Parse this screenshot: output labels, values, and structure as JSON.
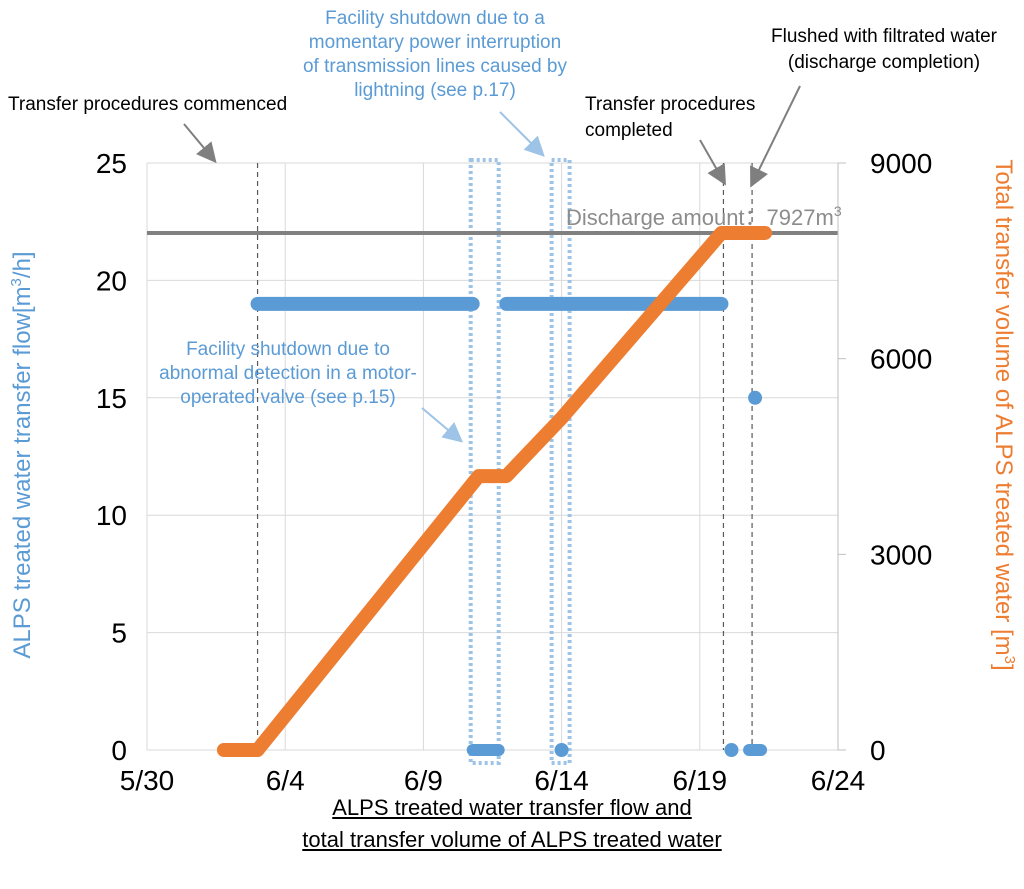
{
  "chart_data": {
    "type": "line",
    "title": "",
    "x_axis": {
      "type": "date",
      "ticks": [
        "5/30",
        "6/4",
        "6/9",
        "6/14",
        "6/19",
        "6/24"
      ],
      "range": [
        "5/30",
        "6/24"
      ]
    },
    "y_left": {
      "label": "ALPS treated water transfer flow[m³/h]",
      "ticks": [
        0,
        5,
        10,
        15,
        20,
        25
      ],
      "range": [
        0,
        25
      ],
      "color": "#5B9BD5"
    },
    "y_right": {
      "label": "Total transfer volume of ALPS treated water [m³]",
      "ticks": [
        0,
        3000,
        6000,
        9000
      ],
      "range": [
        0,
        9000
      ],
      "color": "#ED7D31"
    },
    "grid": "vertical and horizontal",
    "series": [
      {
        "name": "ALPS treated water transfer flow",
        "axis": "left",
        "style": "markers",
        "color": "#5B9BD5",
        "segments": [
          {
            "x_start": "6/3",
            "x_end": "6/11",
            "y": 19
          },
          {
            "x_start": "6/12",
            "x_end": "6/20",
            "y": 19
          }
        ],
        "points": [
          {
            "x": "6/11",
            "y": 0
          },
          {
            "x": "6/14",
            "y": 0
          },
          {
            "x": "6/20",
            "y": 0
          },
          {
            "x": "6/21",
            "y": 15
          },
          {
            "x": "6/21",
            "y": 0
          }
        ]
      },
      {
        "name": "Total transfer volume of ALPS treated water",
        "axis": "right",
        "style": "line",
        "color": "#ED7D31",
        "points": [
          {
            "x": "6/2",
            "y": 0
          },
          {
            "x": "6/3",
            "y": 0
          },
          {
            "x": "6/11",
            "y": 4200
          },
          {
            "x": "6/12",
            "y": 4200
          },
          {
            "x": "6/14",
            "y": 5090
          },
          {
            "x": "6/20",
            "y": 7927
          },
          {
            "x": "6/21",
            "y": 7927
          }
        ]
      }
    ],
    "reference_line": {
      "axis": "right",
      "value": 7927,
      "color": "#808080",
      "label": "Discharge amount：7927m³"
    },
    "annotations": [
      {
        "text": "Transfer procedures commenced",
        "color": "#000000",
        "at": "6/3"
      },
      {
        "text": "Facility shutdown due to a momentary power interruption of transmission lines caused by lightning (see p.17)",
        "color": "#5B9BD5",
        "at": "6/14"
      },
      {
        "text": "Transfer procedures completed",
        "color": "#000000",
        "at": "6/20"
      },
      {
        "text": "Flushed with filtrated water (discharge completion)",
        "color": "#000000",
        "at": "6/21"
      },
      {
        "text": "Facility shutdown due to abnormal detection in a motor-operated valve (see p.15)",
        "color": "#5B9BD5",
        "at": "6/11"
      }
    ],
    "caption": "ALPS treated water transfer flow and total transfer volume of ALPS treated water"
  },
  "text": {
    "y_left_label": "ALPS treated water transfer flow[m",
    "y_left_unit_sup": "3",
    "y_left_unit_end": "/h]",
    "y_right_label": "Total transfer volume of ALPS treated water [m",
    "y_right_unit_sup": "3",
    "y_right_unit_end": "]",
    "discharge_label": "Discharge amount：7927m",
    "discharge_sup": "3",
    "ann_commenced": "Transfer procedures commenced",
    "ann_lightning_1": "Facility shutdown due to a",
    "ann_lightning_2": "momentary power interruption",
    "ann_lightning_3": "of transmission lines caused by",
    "ann_lightning_4": "lightning (see p.17)",
    "ann_completed_1": "Transfer procedures",
    "ann_completed_2": "completed",
    "ann_flushed_1": "Flushed with filtrated water",
    "ann_flushed_2": "(discharge completion)",
    "ann_valve_1": "Facility shutdown due to",
    "ann_valve_2": "abnormal detection in a motor-",
    "ann_valve_3": "operated valve (see p.15)",
    "caption_1": "ALPS treated water transfer flow and",
    "caption_2": "total transfer volume of ALPS treated water"
  }
}
